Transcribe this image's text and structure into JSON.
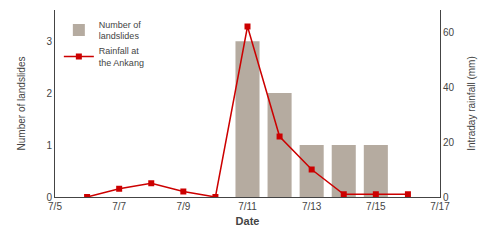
{
  "chart_data": {
    "type": "bar",
    "xlabel": "Date",
    "ylabel": "Number of landslides",
    "y2label": "Intraday rainfall (mm)",
    "series": [
      {
        "name": "Number of\nlandslides",
        "type": "bar",
        "color": "#b5aba0",
        "x": [
          11,
          12,
          13,
          14,
          15
        ],
        "values": [
          3,
          2,
          1,
          1,
          1
        ]
      },
      {
        "name": "Rainfall at\nthe Ankang",
        "type": "line",
        "color": "#cc0000",
        "marker": "square",
        "axis": "y2",
        "x": [
          6,
          7,
          8,
          9,
          10,
          11,
          12,
          13,
          14,
          15,
          16
        ],
        "values": [
          0,
          3,
          5,
          2,
          0,
          62,
          22,
          10,
          1,
          1,
          1
        ]
      }
    ],
    "xlim": [
      5,
      17
    ],
    "xticks": [
      {
        "value": 5,
        "label": "7/5"
      },
      {
        "value": 7,
        "label": "7/7"
      },
      {
        "value": 9,
        "label": "7/9"
      },
      {
        "value": 11,
        "label": "7/11"
      },
      {
        "value": 13,
        "label": "7/13"
      },
      {
        "value": 15,
        "label": "7/15"
      },
      {
        "value": 17,
        "label": "7/17"
      }
    ],
    "ylim": [
      0,
      3.6
    ],
    "yticks": [
      0,
      1,
      2,
      3
    ],
    "y2lim": [
      0,
      68
    ],
    "y2ticks": [
      0,
      20,
      40,
      60
    ],
    "legend": "upper left",
    "grid": false
  }
}
